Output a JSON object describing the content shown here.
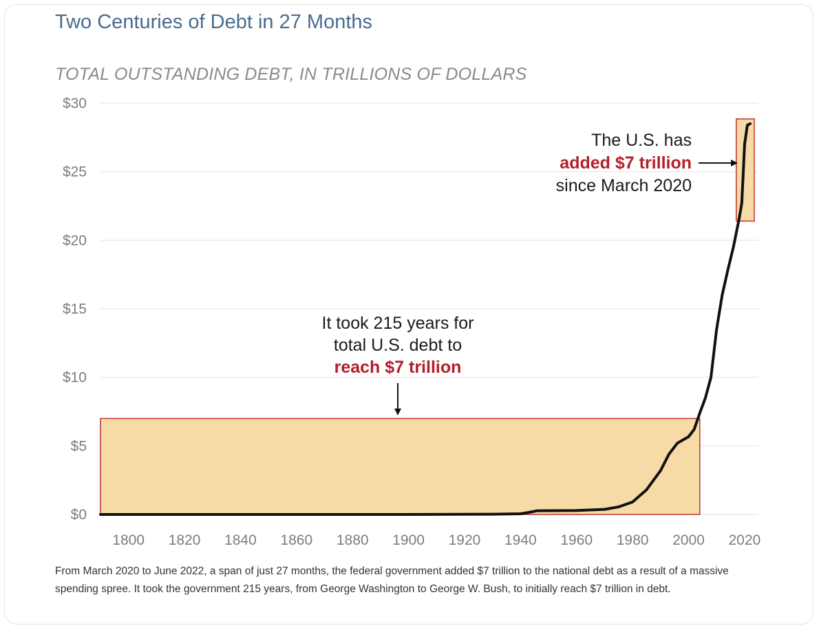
{
  "chart_data": {
    "type": "line",
    "title": "Two Centuries of Debt in 27 Months",
    "subtitle": "TOTAL OUTSTANDING DEBT, IN TRILLIONS OF DOLLARS",
    "xlabel": "",
    "ylabel": "",
    "xlim": [
      1790,
      2022
    ],
    "ylim": [
      0,
      30
    ],
    "x_ticks": [
      "1800",
      "1820",
      "1840",
      "1860",
      "1880",
      "1900",
      "1920",
      "1940",
      "1960",
      "1980",
      "2000",
      "2020"
    ],
    "y_ticks": [
      "$0",
      "$5",
      "$10",
      "$15",
      "$20",
      "$25",
      "$30"
    ],
    "grid": true,
    "series": [
      {
        "color": "#111111",
        "points": [
          [
            1790,
            0.0
          ],
          [
            1900,
            0.0
          ],
          [
            1930,
            0.02
          ],
          [
            1940,
            0.05
          ],
          [
            1943,
            0.15
          ],
          [
            1946,
            0.27
          ],
          [
            1960,
            0.29
          ],
          [
            1970,
            0.37
          ],
          [
            1975,
            0.55
          ],
          [
            1980,
            0.91
          ],
          [
            1985,
            1.8
          ],
          [
            1990,
            3.2
          ],
          [
            1993,
            4.4
          ],
          [
            1996,
            5.2
          ],
          [
            2000,
            5.67
          ],
          [
            2002,
            6.2
          ],
          [
            2004,
            7.4
          ],
          [
            2006,
            8.5
          ],
          [
            2008,
            10.0
          ],
          [
            2010,
            13.5
          ],
          [
            2012,
            16.0
          ],
          [
            2014,
            17.8
          ],
          [
            2016,
            19.5
          ],
          [
            2018,
            21.5
          ],
          [
            2019,
            22.7
          ],
          [
            2020,
            27.0
          ],
          [
            2021,
            28.4
          ],
          [
            2022,
            28.5
          ]
        ]
      }
    ],
    "highlights": [
      {
        "x": [
          1790,
          2004
        ],
        "y": [
          0,
          7
        ],
        "fill": "#f7dba6",
        "stroke": "#c0312f"
      },
      {
        "x": [
          2018,
          2022
        ],
        "y": [
          21.5,
          28.5
        ],
        "fill": "#f7dba6",
        "stroke": "#c0312f"
      }
    ],
    "annotations": [
      {
        "lines": [
          "The U.S. has",
          "added $7 trillion",
          "since March 2020"
        ],
        "red_line": 1
      },
      {
        "lines": [
          "It took 215 years for",
          "total U.S. debt to",
          "reach $7 trillion"
        ],
        "red_line": 2
      }
    ],
    "caption": "From March 2020 to June 2022, a span of just 27 months, the federal government added $7 trillion to the national debt as a result of a massive spending spree. It took the government 215 years, from George Washington to George W. Bush, to initially reach $7 trillion in debt."
  }
}
